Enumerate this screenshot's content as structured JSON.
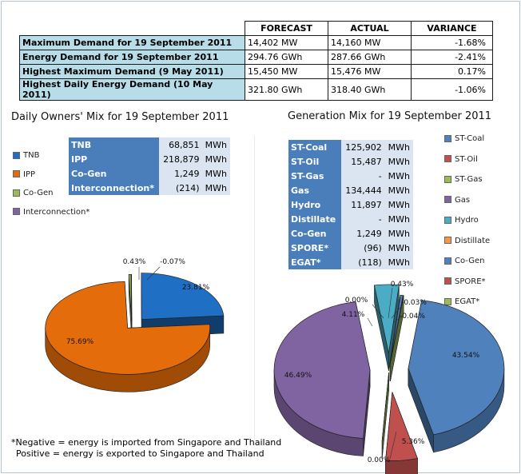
{
  "summary": {
    "headers": [
      "FORECAST",
      "ACTUAL",
      "VARIANCE"
    ],
    "rows": [
      {
        "label": "Maximum Demand for 19 September 2011",
        "forecast": "14,402",
        "forecast_unit": "MW",
        "actual": "14,160",
        "actual_unit": "MW",
        "variance": "-1.68%"
      },
      {
        "label": "Energy Demand for 19 September 2011",
        "forecast": "294.76",
        "forecast_unit": "GWh",
        "actual": "287.66",
        "actual_unit": "GWh",
        "variance": "-2.41%"
      },
      {
        "label": "Highest Maximum Demand (9 May 2011)",
        "forecast": "15,450",
        "forecast_unit": "MW",
        "actual": "15,476",
        "actual_unit": "MW",
        "variance": "0.17%"
      },
      {
        "label": "Highest Daily Energy Demand (10 May 2011)",
        "forecast": "321.80",
        "forecast_unit": "GWh",
        "actual": "318.40",
        "actual_unit": "GWh",
        "variance": "-1.06%"
      }
    ]
  },
  "owners": {
    "title": "Daily Owners' Mix for 19 September 2011",
    "table": [
      {
        "name": "TNB",
        "value": "68,851",
        "unit": "MWh"
      },
      {
        "name": "IPP",
        "value": "218,879",
        "unit": "MWh"
      },
      {
        "name": "Co-Gen",
        "value": "1,249",
        "unit": "MWh"
      },
      {
        "name": "Interconnection*",
        "value": "(214)",
        "unit": "MWh"
      }
    ],
    "legend": [
      {
        "name": "TNB",
        "color": "#1f6fc5"
      },
      {
        "name": "IPP",
        "color": "#e46c0a"
      },
      {
        "name": "Co-Gen",
        "color": "#9bbb59"
      },
      {
        "name": "Interconnection*",
        "color": "#8064a2"
      }
    ]
  },
  "generation": {
    "title": "Generation Mix for 19 September 2011",
    "table": [
      {
        "name": "ST-Coal",
        "value": "125,902",
        "unit": "MWh"
      },
      {
        "name": "ST-Oil",
        "value": "15,487",
        "unit": "MWh"
      },
      {
        "name": "ST-Gas",
        "value": "-",
        "unit": "MWh"
      },
      {
        "name": "Gas",
        "value": "134,444",
        "unit": "MWh"
      },
      {
        "name": "Hydro",
        "value": "11,897",
        "unit": "MWh"
      },
      {
        "name": "Distillate",
        "value": "-",
        "unit": "MWh"
      },
      {
        "name": "Co-Gen",
        "value": "1,249",
        "unit": "MWh"
      },
      {
        "name": "SPORE*",
        "value": "(96)",
        "unit": "MWh"
      },
      {
        "name": "EGAT*",
        "value": "(118)",
        "unit": "MWh"
      }
    ],
    "legend": [
      {
        "name": "ST-Coal",
        "color": "#4f81bd"
      },
      {
        "name": "ST-Oil",
        "color": "#c0504d"
      },
      {
        "name": "ST-Gas",
        "color": "#9bbb59"
      },
      {
        "name": "Gas",
        "color": "#8064a2"
      },
      {
        "name": "Hydro",
        "color": "#4bacc6"
      },
      {
        "name": "Distillate",
        "color": "#f79646"
      },
      {
        "name": "Co-Gen",
        "color": "#4f81bd"
      },
      {
        "name": "SPORE*",
        "color": "#c0504d"
      },
      {
        "name": "EGAT*",
        "color": "#9bbb59"
      }
    ]
  },
  "note": {
    "line1": "*Negative = energy is imported from Singapore and Thailand",
    "line2": "Positive = energy is exported to Singapore and Thailand"
  },
  "chart_data": [
    {
      "type": "pie",
      "title": "Daily Owners' Mix for 19 September 2011",
      "categories": [
        "TNB",
        "IPP",
        "Co-Gen",
        "Interconnection*"
      ],
      "values": [
        23.81,
        75.69,
        0.43,
        -0.07
      ],
      "labels": [
        "23.81%",
        "75.69%",
        "0.43%",
        "-0.07%"
      ],
      "colors": [
        "#1f6fc5",
        "#e46c0a",
        "#9bbb59",
        "#8064a2"
      ]
    },
    {
      "type": "pie",
      "title": "Generation Mix for 19 September 2011",
      "categories": [
        "ST-Coal",
        "ST-Oil",
        "ST-Gas",
        "Gas",
        "Hydro",
        "Distillate",
        "Co-Gen",
        "SPORE*",
        "EGAT*"
      ],
      "values": [
        43.54,
        5.36,
        0.0,
        46.49,
        4.11,
        0.0,
        0.43,
        -0.03,
        -0.04
      ],
      "labels": [
        "43.54%",
        "5.36%",
        "0.00%",
        "46.49%",
        "4.11%",
        "0.00%",
        "0.43%",
        "-0.03%",
        "-0.04%"
      ],
      "colors": [
        "#4f81bd",
        "#c0504d",
        "#9bbb59",
        "#8064a2",
        "#4bacc6",
        "#f79646",
        "#4f81bd",
        "#c0504d",
        "#9bbb59"
      ]
    }
  ]
}
